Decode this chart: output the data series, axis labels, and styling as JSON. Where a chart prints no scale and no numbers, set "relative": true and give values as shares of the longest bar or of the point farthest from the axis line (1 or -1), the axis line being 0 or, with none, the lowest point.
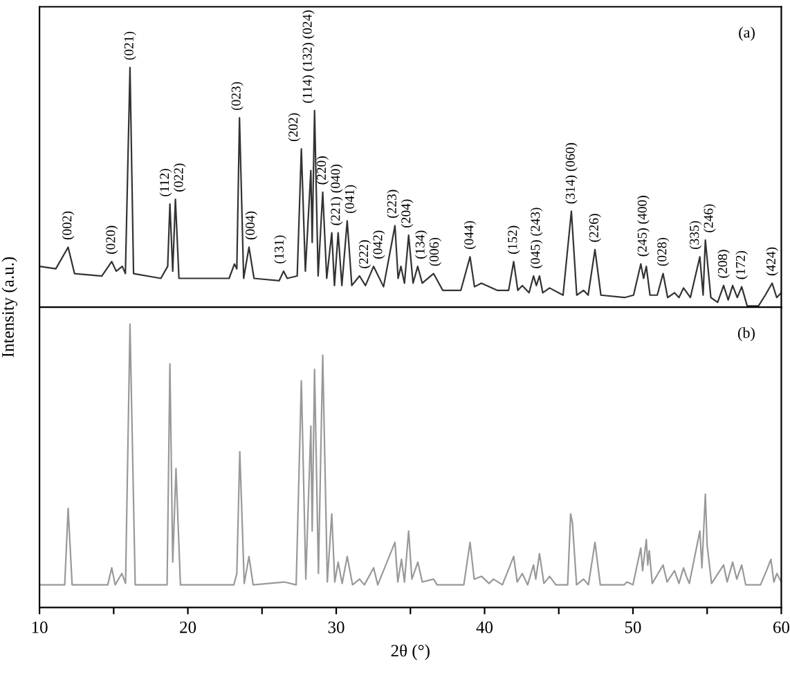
{
  "chart_data": [
    {
      "type": "line",
      "relative": true,
      "xlim": [
        10,
        60
      ],
      "tick_labels": false,
      "ylabel": "Intensity (a.u.)",
      "series": [
        {
          "color": "#333333",
          "x": [
            10,
            11.1,
            11.93,
            12.36,
            14.2,
            14.87,
            15.17,
            15.58,
            15.79,
            16.1,
            16.34,
            18.18,
            18.64,
            18.79,
            18.98,
            19.16,
            19.4,
            22.78,
            23.14,
            23.3,
            23.48,
            23.76,
            24.12,
            24.46,
            26.15,
            26.45,
            26.7,
            27.37,
            27.65,
            27.92,
            28.29,
            28.38,
            28.54,
            28.78,
            29.09,
            29.36,
            29.7,
            29.88,
            30.13,
            30.38,
            30.74,
            31.05,
            31.57,
            31.97,
            32.52,
            33.19,
            33.96,
            34.17,
            34.36,
            34.6,
            34.88,
            35.18,
            35.49,
            35.8,
            36.56,
            37.18,
            38.4,
            39.02,
            39.32,
            39.78,
            40.85,
            41.62,
            41.96,
            42.24,
            42.54,
            43.0,
            43.3,
            43.49,
            43.7,
            43.92,
            44.38,
            45.29,
            45.85,
            46.21,
            46.67,
            46.98,
            47.44,
            47.84,
            49.43,
            50.04,
            50.53,
            50.72,
            50.9,
            51.15,
            51.64,
            52.03,
            52.34,
            52.8,
            53.1,
            53.41,
            53.87,
            54.51,
            54.73,
            54.88,
            55.25,
            55.71,
            56.11,
            56.42,
            56.72,
            57.03,
            57.33,
            57.7,
            58.46,
            58.92,
            59.38,
            59.69,
            60
          ],
          "values": [
            0.17,
            0.16,
            0.25,
            0.14,
            0.13,
            0.19,
            0.15,
            0.17,
            0.14,
            1.0,
            0.14,
            0.12,
            0.17,
            0.43,
            0.15,
            0.45,
            0.12,
            0.12,
            0.18,
            0.16,
            0.79,
            0.12,
            0.25,
            0.12,
            0.11,
            0.15,
            0.12,
            0.13,
            0.66,
            0.15,
            0.57,
            0.27,
            0.82,
            0.13,
            0.48,
            0.12,
            0.31,
            0.09,
            0.31,
            0.09,
            0.36,
            0.09,
            0.13,
            0.09,
            0.17,
            0.085,
            0.34,
            0.12,
            0.17,
            0.1,
            0.3,
            0.1,
            0.17,
            0.1,
            0.14,
            0.07,
            0.07,
            0.21,
            0.085,
            0.1,
            0.07,
            0.07,
            0.19,
            0.07,
            0.09,
            0.06,
            0.13,
            0.09,
            0.13,
            0.06,
            0.08,
            0.05,
            0.4,
            0.05,
            0.07,
            0.05,
            0.24,
            0.05,
            0.04,
            0.05,
            0.18,
            0.12,
            0.17,
            0.05,
            0.05,
            0.14,
            0.04,
            0.06,
            0.04,
            0.08,
            0.04,
            0.21,
            0.05,
            0.28,
            0.04,
            0.02,
            0.09,
            0.03,
            0.09,
            0.04,
            0.085,
            0.005,
            0.005,
            0.05,
            0.1,
            0.04,
            0.06
          ]
        }
      ],
      "annotations": [
        "(a)",
        {
          "text": "(002)",
          "x": 11.93,
          "y": 0.25
        },
        {
          "text": "(020)",
          "x": 14.87,
          "y": 0.19
        },
        {
          "text": "(021)",
          "x": 16.1,
          "y": 1.0
        },
        {
          "text": "(112)",
          "x": 18.79,
          "y": 0.43
        },
        {
          "text": "(022)",
          "x": 19.16,
          "y": 0.45
        },
        {
          "text": "(023)",
          "x": 23.48,
          "y": 0.79
        },
        {
          "text": "(004)",
          "x": 24.12,
          "y": 0.25
        },
        {
          "text": "(131)",
          "x": 26.45,
          "y": 0.15
        },
        {
          "text": "(202)",
          "x": 27.65,
          "y": 0.66
        },
        {
          "text": "(114) (132) (024)",
          "x": 28.54,
          "y": 0.82
        },
        {
          "text": "(220)",
          "x": 29.09,
          "y": 0.48
        },
        {
          "text": "(221) (040)",
          "x": 29.95,
          "y": 0.31
        },
        {
          "text": "(041)",
          "x": 30.74,
          "y": 0.36
        },
        {
          "text": "(222)",
          "x": 31.57,
          "y": 0.13
        },
        {
          "text": "(042)",
          "x": 32.52,
          "y": 0.17
        },
        {
          "text": "(223)",
          "x": 33.96,
          "y": 0.34
        },
        {
          "text": "(204)",
          "x": 34.88,
          "y": 0.3
        },
        {
          "text": "(134)",
          "x": 35.49,
          "y": 0.17
        },
        {
          "text": "(006)",
          "x": 36.56,
          "y": 0.14
        },
        {
          "text": "(044)",
          "x": 39.02,
          "y": 0.21
        },
        {
          "text": "(152)",
          "x": 41.96,
          "y": 0.19
        },
        {
          "text": "(045) (243)",
          "x": 43.5,
          "y": 0.13
        },
        {
          "text": "(314) (060)",
          "x": 45.85,
          "y": 0.4
        },
        {
          "text": "(226)",
          "x": 47.44,
          "y": 0.24
        },
        {
          "text": "(245) (400)",
          "x": 50.7,
          "y": 0.18
        },
        {
          "text": "(028)",
          "x": 52.03,
          "y": 0.14
        },
        {
          "text": "(335)",
          "x": 54.51,
          "y": 0.21
        },
        {
          "text": "(246)",
          "x": 54.88,
          "y": 0.28
        },
        {
          "text": "(208)",
          "x": 56.11,
          "y": 0.09
        },
        {
          "text": "(172)",
          "x": 57.33,
          "y": 0.085
        },
        {
          "text": "(424)",
          "x": 59.38,
          "y": 0.1
        }
      ]
    },
    {
      "type": "line",
      "relative": true,
      "xlim": [
        10,
        60
      ],
      "tick_labels": "x",
      "xlabel": "2θ (°)",
      "xticks": [
        10,
        {
          "value": 15,
          "label": null
        },
        20,
        {
          "value": 25,
          "label": null
        },
        30,
        {
          "value": 35,
          "label": null
        },
        40,
        {
          "value": 45,
          "label": null
        },
        50,
        {
          "value": 55,
          "label": null
        },
        60
      ],
      "series": [
        {
          "color": "#999999",
          "x": [
            10,
            11.7,
            11.93,
            12.2,
            14.6,
            14.87,
            15.1,
            15.55,
            15.8,
            16.1,
            16.45,
            18.6,
            18.79,
            18.98,
            19.2,
            19.5,
            23.1,
            23.3,
            23.5,
            23.8,
            24.12,
            24.4,
            26.5,
            27.3,
            27.65,
            27.95,
            28.29,
            28.38,
            28.54,
            28.8,
            29.09,
            29.4,
            29.7,
            29.9,
            30.13,
            30.4,
            30.74,
            31.1,
            31.57,
            31.9,
            32.52,
            32.8,
            33.96,
            34.15,
            34.4,
            34.6,
            34.88,
            35.1,
            35.5,
            35.8,
            36.56,
            36.8,
            38.6,
            39.02,
            39.3,
            39.8,
            40.3,
            40.6,
            41.2,
            41.96,
            42.2,
            42.54,
            42.9,
            43.3,
            43.45,
            43.7,
            44.0,
            44.38,
            44.8,
            45.6,
            45.8,
            45.92,
            46.2,
            46.67,
            47.0,
            47.44,
            47.8,
            49.4,
            49.6,
            50.0,
            50.53,
            50.65,
            50.9,
            51.0,
            51.1,
            51.3,
            52.03,
            52.3,
            52.8,
            53.1,
            53.41,
            53.6,
            53.8,
            54.51,
            54.65,
            54.88,
            55.0,
            55.3,
            56.11,
            56.35,
            56.72,
            57.0,
            57.33,
            57.6,
            58.6,
            59.0,
            59.3,
            59.5,
            59.7,
            60
          ],
          "values": [
            0.08,
            0.08,
            0.35,
            0.08,
            0.08,
            0.14,
            0.08,
            0.12,
            0.085,
            1.0,
            0.08,
            0.08,
            0.86,
            0.16,
            0.49,
            0.08,
            0.08,
            0.12,
            0.55,
            0.085,
            0.18,
            0.08,
            0.09,
            0.08,
            0.8,
            0.1,
            0.64,
            0.27,
            0.84,
            0.12,
            0.89,
            0.09,
            0.33,
            0.09,
            0.16,
            0.085,
            0.18,
            0.08,
            0.1,
            0.08,
            0.14,
            0.08,
            0.23,
            0.09,
            0.17,
            0.09,
            0.27,
            0.1,
            0.16,
            0.09,
            0.1,
            0.08,
            0.08,
            0.23,
            0.1,
            0.11,
            0.085,
            0.1,
            0.08,
            0.18,
            0.09,
            0.12,
            0.08,
            0.15,
            0.1,
            0.19,
            0.085,
            0.11,
            0.08,
            0.08,
            0.33,
            0.3,
            0.08,
            0.1,
            0.08,
            0.23,
            0.08,
            0.08,
            0.09,
            0.08,
            0.21,
            0.13,
            0.24,
            0.15,
            0.2,
            0.085,
            0.15,
            0.09,
            0.13,
            0.085,
            0.14,
            0.11,
            0.085,
            0.27,
            0.14,
            0.4,
            0.22,
            0.085,
            0.15,
            0.09,
            0.16,
            0.1,
            0.15,
            0.08,
            0.08,
            0.13,
            0.17,
            0.09,
            0.12,
            0.09
          ]
        }
      ],
      "annotations": [
        "(b)"
      ]
    }
  ]
}
